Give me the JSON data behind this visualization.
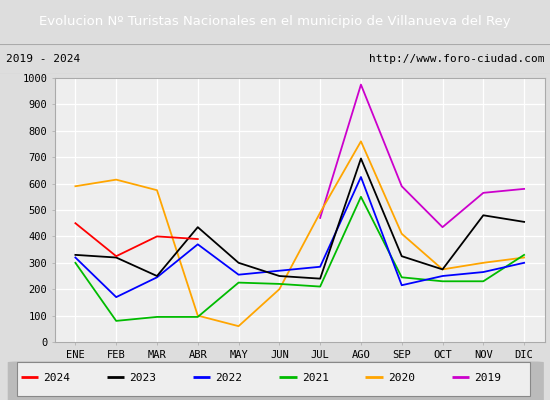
{
  "title": "Evolucion Nº Turistas Nacionales en el municipio de Villanueva del Rey",
  "subtitle_left": "2019 - 2024",
  "subtitle_right": "http://www.foro-ciudad.com",
  "months": [
    "ENE",
    "FEB",
    "MAR",
    "ABR",
    "MAY",
    "JUN",
    "JUL",
    "AGO",
    "SEP",
    "OCT",
    "NOV",
    "DIC"
  ],
  "series": {
    "2024": [
      450,
      325,
      400,
      390,
      null,
      null,
      null,
      null,
      null,
      null,
      null,
      null
    ],
    "2023": [
      330,
      320,
      250,
      435,
      300,
      250,
      240,
      695,
      325,
      275,
      480,
      455
    ],
    "2022": [
      320,
      170,
      245,
      370,
      255,
      270,
      285,
      625,
      215,
      250,
      265,
      300
    ],
    "2021": [
      300,
      80,
      95,
      95,
      225,
      220,
      210,
      550,
      245,
      230,
      230,
      330
    ],
    "2020": [
      590,
      615,
      575,
      100,
      60,
      200,
      490,
      760,
      410,
      275,
      300,
      320
    ],
    "2019": [
      null,
      null,
      null,
      null,
      null,
      null,
      470,
      975,
      590,
      435,
      565,
      580
    ]
  },
  "colors": {
    "2024": "#ff0000",
    "2023": "#000000",
    "2022": "#0000ff",
    "2021": "#00bb00",
    "2020": "#ffa500",
    "2019": "#cc00cc"
  },
  "ylim": [
    0,
    1000
  ],
  "yticks": [
    0,
    100,
    200,
    300,
    400,
    500,
    600,
    700,
    800,
    900,
    1000
  ],
  "title_bg_color": "#4a90d9",
  "title_text_color": "#ffffff",
  "plot_bg_color": "#eeeeee",
  "grid_color": "#ffffff",
  "outer_bg_color": "#dddddd",
  "legend_order": [
    "2024",
    "2023",
    "2022",
    "2021",
    "2020",
    "2019"
  ]
}
